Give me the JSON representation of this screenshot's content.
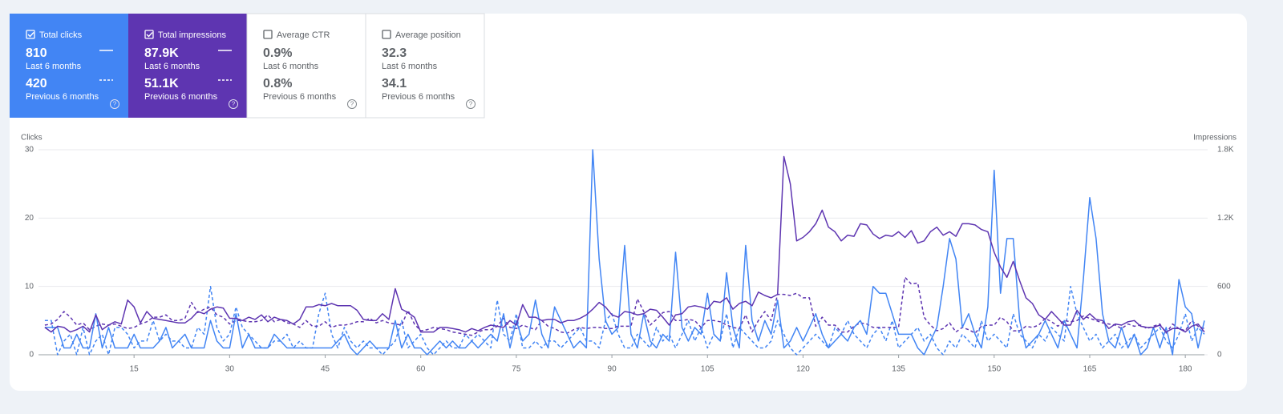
{
  "metrics": [
    {
      "label": "Total clicks",
      "current": "810",
      "current_label": "Last 6 months",
      "previous": "420",
      "previous_label": "Previous 6 months",
      "checked": true,
      "color": "#4285f4"
    },
    {
      "label": "Total impressions",
      "current": "87.9K",
      "current_label": "Last 6 months",
      "previous": "51.1K",
      "previous_label": "Previous 6 months",
      "checked": true,
      "color": "#5e35b1"
    },
    {
      "label": "Average CTR",
      "current": "0.9%",
      "current_label": "Last 6 months",
      "previous": "0.8%",
      "previous_label": "Previous 6 months",
      "checked": false,
      "color": "#ffffff"
    },
    {
      "label": "Average position",
      "current": "32.3",
      "current_label": "Last 6 months",
      "previous": "34.1",
      "previous_label": "Previous 6 months",
      "checked": false,
      "color": "#ffffff"
    }
  ],
  "chart_data": {
    "type": "line",
    "y_label": "Clicks",
    "y2_label": "Impressions",
    "x": [
      1,
      2,
      3,
      4,
      5,
      6,
      7,
      8,
      9,
      10,
      11,
      12,
      13,
      14,
      15,
      16,
      17,
      18,
      19,
      20,
      21,
      22,
      23,
      24,
      25,
      26,
      27,
      28,
      29,
      30,
      31,
      32,
      33,
      34,
      35,
      36,
      37,
      38,
      39,
      40,
      41,
      42,
      43,
      44,
      45,
      46,
      47,
      48,
      49,
      50,
      51,
      52,
      53,
      54,
      55,
      56,
      57,
      58,
      59,
      60,
      61,
      62,
      63,
      64,
      65,
      66,
      67,
      68,
      69,
      70,
      71,
      72,
      73,
      74,
      75,
      76,
      77,
      78,
      79,
      80,
      81,
      82,
      83,
      84,
      85,
      86,
      87,
      88,
      89,
      90,
      91,
      92,
      93,
      94,
      95,
      96,
      97,
      98,
      99,
      100,
      101,
      102,
      103,
      104,
      105,
      106,
      107,
      108,
      109,
      110,
      111,
      112,
      113,
      114,
      115,
      116,
      117,
      118,
      119,
      120,
      121,
      122,
      123,
      124,
      125,
      126,
      127,
      128,
      129,
      130,
      131,
      132,
      133,
      134,
      135,
      136,
      137,
      138,
      139,
      140,
      141,
      142,
      143,
      144,
      145,
      146,
      147,
      148,
      149,
      150,
      151,
      152,
      153,
      154,
      155,
      156,
      157,
      158,
      159,
      160,
      161,
      162,
      163,
      164,
      165,
      166,
      167,
      168,
      169,
      170,
      171,
      172,
      173,
      174,
      175,
      176,
      177,
      178,
      179,
      180,
      181,
      182,
      183
    ],
    "xlim": [
      0,
      183
    ],
    "xticks": [
      15,
      30,
      45,
      60,
      75,
      90,
      105,
      120,
      135,
      150,
      165,
      180
    ],
    "ylim": [
      0,
      30
    ],
    "yticks": [
      0,
      10,
      20,
      30
    ],
    "y2lim": [
      0,
      1800
    ],
    "y2ticks": [
      0,
      600,
      {
        "value": 1200,
        "label": "1.2K"
      },
      {
        "value": 1800,
        "label": "1.8K"
      }
    ],
    "grid": true,
    "series": [
      {
        "color": "#4285f4",
        "dashed": true,
        "axis": "y",
        "values": [
          5,
          5,
          0,
          2,
          3,
          0,
          4,
          0,
          2,
          3,
          0,
          4,
          4,
          3,
          1,
          2,
          2,
          5,
          2,
          3,
          2,
          2,
          1,
          1,
          4,
          3,
          10,
          4,
          2,
          3,
          7,
          4,
          3,
          2,
          1,
          1,
          2,
          2,
          3,
          1,
          2,
          1,
          1,
          6,
          9,
          3,
          1,
          4,
          2,
          1,
          2,
          1,
          1,
          0,
          1,
          2,
          5,
          1,
          2,
          3,
          1,
          0,
          1,
          2,
          1,
          1,
          3,
          2,
          3,
          2,
          1,
          8,
          3,
          2,
          6,
          1,
          1,
          2,
          1,
          2,
          2,
          1,
          2,
          3,
          4,
          2,
          2,
          1,
          5,
          6,
          3,
          1,
          1,
          3,
          2,
          1,
          4,
          2,
          3,
          1,
          3,
          5,
          2,
          4,
          1,
          3,
          2,
          6,
          1,
          4,
          3,
          2,
          1,
          1,
          2,
          5,
          3,
          1,
          0,
          1,
          2,
          3,
          2,
          1,
          4,
          3,
          5,
          3,
          2,
          1,
          3,
          4,
          2,
          5,
          1,
          2,
          3,
          4,
          2,
          3,
          1,
          0,
          2,
          1,
          3,
          2,
          1,
          5,
          2,
          3,
          2,
          1,
          6,
          3,
          2,
          1,
          3,
          2,
          4,
          3,
          2,
          10,
          6,
          4,
          2,
          3,
          1,
          2,
          3,
          1,
          2,
          3,
          1,
          2,
          3,
          4,
          2,
          1,
          3,
          6,
          2,
          4,
          3
        ]
      },
      {
        "color": "#5e35b1",
        "dashed": true,
        "axis": "y2",
        "values": [
          260,
          270,
          310,
          380,
          330,
          260,
          280,
          220,
          250,
          270,
          260,
          270,
          250,
          230,
          240,
          270,
          290,
          330,
          330,
          350,
          300,
          300,
          320,
          460,
          370,
          400,
          420,
          350,
          330,
          270,
          300,
          300,
          290,
          290,
          300,
          350,
          290,
          310,
          280,
          270,
          240,
          300,
          250,
          250,
          290,
          240,
          260,
          260,
          270,
          290,
          290,
          320,
          280,
          300,
          280,
          270,
          260,
          390,
          270,
          210,
          220,
          240,
          230,
          220,
          200,
          190,
          180,
          170,
          200,
          220,
          220,
          250,
          320,
          240,
          230,
          260,
          240,
          220,
          300,
          250,
          230,
          200,
          190,
          220,
          240,
          230,
          240,
          240,
          230,
          230,
          250,
          250,
          250,
          490,
          380,
          260,
          310,
          370,
          380,
          300,
          300,
          310,
          300,
          240,
          300,
          300,
          290,
          260,
          240,
          230,
          350,
          200,
          300,
          380,
          300,
          530,
          530,
          520,
          540,
          500,
          500,
          250,
          330,
          260,
          260,
          200,
          200,
          250,
          280,
          270,
          240,
          240,
          240,
          240,
          240,
          680,
          620,
          630,
          330,
          260,
          210,
          230,
          280,
          200,
          240,
          220,
          190,
          250,
          260,
          260,
          330,
          290,
          210,
          210,
          250,
          240,
          260,
          320,
          290,
          250,
          300,
          290,
          300,
          340,
          320,
          300,
          280,
          270,
          260,
          230,
          270,
          250,
          260,
          230,
          250,
          270,
          190,
          270,
          230,
          210,
          300,
          250,
          230
        ]
      },
      {
        "color": "#4285f4",
        "dashed": false,
        "axis": "y",
        "values": [
          4,
          4,
          4,
          1,
          1,
          3,
          1,
          1,
          6,
          1,
          4,
          1,
          1,
          1,
          3,
          1,
          1,
          1,
          2,
          4,
          1,
          2,
          3,
          1,
          1,
          1,
          5,
          2,
          1,
          1,
          6,
          1,
          3,
          1,
          1,
          1,
          3,
          2,
          1,
          1,
          1,
          1,
          1,
          1,
          1,
          1,
          2,
          3,
          1,
          0,
          1,
          2,
          1,
          1,
          1,
          5,
          1,
          3,
          1,
          1,
          0,
          1,
          2,
          1,
          2,
          1,
          1,
          2,
          1,
          2,
          3,
          2,
          6,
          1,
          5,
          2,
          3,
          8,
          3,
          1,
          7,
          5,
          3,
          1,
          2,
          1,
          30,
          14,
          5,
          3,
          4,
          16,
          3,
          1,
          6,
          2,
          1,
          3,
          2,
          15,
          4,
          2,
          4,
          3,
          9,
          3,
          2,
          12,
          4,
          1,
          16,
          5,
          2,
          5,
          3,
          8,
          1,
          2,
          4,
          2,
          4,
          6,
          3,
          1,
          2,
          3,
          2,
          4,
          5,
          3,
          10,
          9,
          9,
          6,
          3,
          3,
          3,
          1,
          0,
          2,
          4,
          10,
          17,
          14,
          4,
          6,
          3,
          1,
          7,
          27,
          9,
          17,
          17,
          5,
          1,
          2,
          3,
          5,
          3,
          1,
          5,
          3,
          1,
          11,
          23,
          17,
          6,
          2,
          1,
          4,
          1,
          3,
          0,
          1,
          4,
          1,
          4,
          0,
          11,
          7,
          6,
          1,
          5
        ]
      },
      {
        "color": "#5e35b1",
        "dashed": false,
        "axis": "y2",
        "values": [
          240,
          200,
          250,
          240,
          200,
          220,
          250,
          200,
          350,
          220,
          260,
          290,
          270,
          480,
          420,
          280,
          380,
          320,
          310,
          300,
          290,
          280,
          280,
          320,
          380,
          360,
          400,
          420,
          410,
          320,
          320,
          300,
          330,
          310,
          350,
          290,
          330,
          310,
          300,
          270,
          310,
          420,
          420,
          440,
          430,
          450,
          430,
          430,
          430,
          390,
          310,
          300,
          300,
          360,
          310,
          580,
          400,
          370,
          330,
          200,
          200,
          200,
          240,
          240,
          230,
          220,
          200,
          230,
          210,
          240,
          260,
          250,
          240,
          300,
          260,
          440,
          330,
          330,
          300,
          310,
          310,
          280,
          300,
          300,
          320,
          350,
          400,
          460,
          420,
          350,
          330,
          380,
          370,
          350,
          360,
          400,
          390,
          330,
          260,
          350,
          360,
          420,
          430,
          420,
          400,
          470,
          460,
          500,
          400,
          450,
          470,
          430,
          550,
          520,
          500,
          530,
          1740,
          1500,
          1000,
          1030,
          1080,
          1150,
          1270,
          1120,
          1080,
          1000,
          1050,
          1040,
          1150,
          1140,
          1060,
          1020,
          1050,
          1040,
          1080,
          1030,
          1090,
          980,
          1000,
          1080,
          1120,
          1050,
          1080,
          1040,
          1150,
          1150,
          1140,
          1100,
          1080,
          900,
          770,
          680,
          820,
          650,
          500,
          450,
          350,
          310,
          380,
          320,
          260,
          260,
          390,
          310,
          360,
          310,
          300,
          230,
          270,
          260,
          290,
          300,
          250,
          240,
          240,
          260,
          200,
          230,
          230,
          200,
          250,
          270,
          200
        ]
      }
    ]
  }
}
